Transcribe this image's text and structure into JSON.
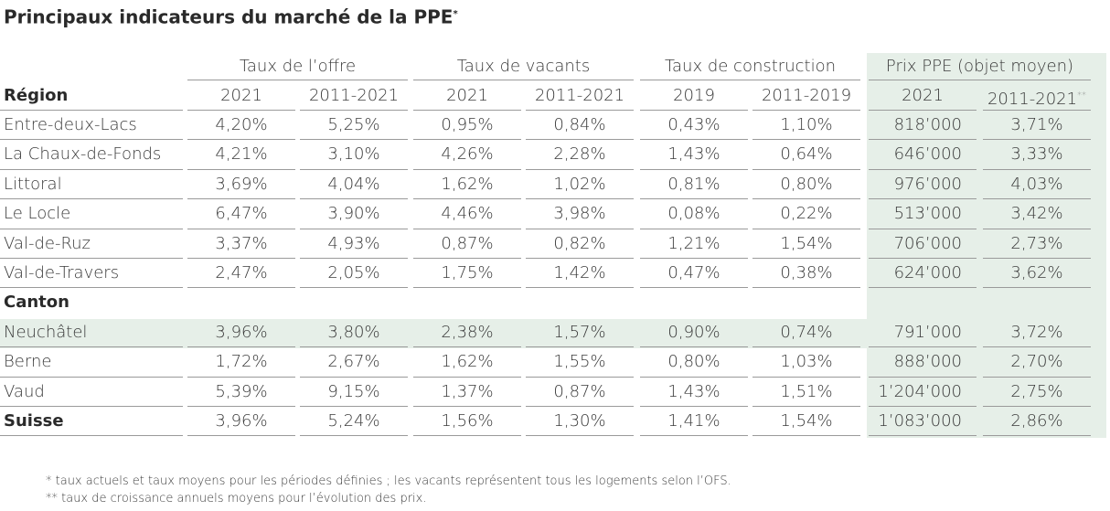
{
  "title": {
    "text": "Principaux indicateurs du marché de la PPE",
    "note": "*"
  },
  "table": {
    "groups": [
      "Taux de l’offre",
      "Taux de vacants",
      "Taux de construction",
      "Prix PPE (objet moyen)"
    ],
    "header": {
      "label": "Région",
      "columns": [
        "2021",
        "2011-2021",
        "2021",
        "2011-2021",
        "2019",
        "2011-2019",
        "2021",
        "2011-2021"
      ],
      "last_note": "**"
    },
    "rows": [
      [
        "Entre-deux-Lacs",
        "4,20%",
        "5,25%",
        "0,95%",
        "0,84%",
        "0,43%",
        "1,10%",
        "818’000",
        "3,71%"
      ],
      [
        "La Chaux-de-Fonds",
        "4,21%",
        "3,10%",
        "4,26%",
        "2,28%",
        "1,43%",
        "0,64%",
        "646’000",
        "3,33%"
      ],
      [
        "Littoral",
        "3,69%",
        "4,04%",
        "1,62%",
        "1,02%",
        "0,81%",
        "0,80%",
        "976’000",
        "4,03%"
      ],
      [
        "Le Locle",
        "6,47%",
        "3,90%",
        "4,46%",
        "3,98%",
        "0,08%",
        "0,22%",
        "513’000",
        "3,42%"
      ],
      [
        "Val-de-Ruz",
        "3,37%",
        "4,93%",
        "0,87%",
        "0,82%",
        "1,21%",
        "1,54%",
        "706’000",
        "2,73%"
      ],
      [
        "Val-de-Travers",
        "2,47%",
        "2,05%",
        "1,75%",
        "1,42%",
        "0,47%",
        "0,38%",
        "624’000",
        "3,62%"
      ]
    ],
    "section_label": "Canton",
    "canton_rows": [
      [
        "Neuchâtel",
        "3,96%",
        "3,80%",
        "2,38%",
        "1,57%",
        "0,90%",
        "0,74%",
        "791’000",
        "3,72%"
      ],
      [
        "Berne",
        "1,72%",
        "2,67%",
        "1,62%",
        "1,55%",
        "0,80%",
        "1,03%",
        "888’000",
        "2,70%"
      ],
      [
        "Vaud",
        "5,39%",
        "9,15%",
        "1,37%",
        "0,87%",
        "1,43%",
        "1,51%",
        "1’204’000",
        "2,75%"
      ],
      [
        "Suisse",
        "3,96%",
        "5,24%",
        "1,56%",
        "1,30%",
        "1,41%",
        "1,54%",
        "1’083’000",
        "2,86%"
      ]
    ]
  },
  "footnotes": [
    "* taux actuels et taux moyens pour les périodes définies ; les vacants représentent tous les logements selon l’OFS.",
    "** taux de croissance annuels moyens pour l’évolution des prix."
  ]
}
